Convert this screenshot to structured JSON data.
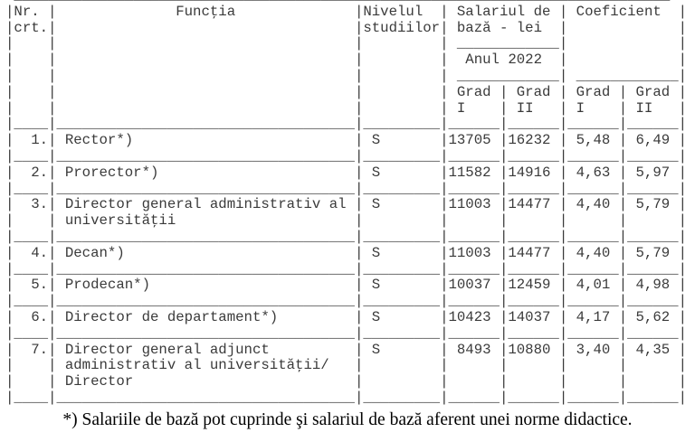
{
  "header": {
    "nr": [
      "Nr.",
      "crt."
    ],
    "functia": "Funcţia",
    "nivel": [
      "Nivelul",
      "studiilor"
    ],
    "salariu": [
      "Salariul de",
      "bază - lei"
    ],
    "anul": "Anul 2022",
    "coeficient": "Coeficient",
    "grad": [
      "Grad",
      "Grad",
      "Grad",
      "Grad"
    ],
    "grad_sub": [
      "I",
      "II",
      "I",
      "II"
    ]
  },
  "rows": [
    {
      "nr": "1.",
      "functia": [
        "Rector*)"
      ],
      "nivel": "S",
      "sal1": "13705",
      "sal2": "16232",
      "coef1": "5,48",
      "coef2": "6,49"
    },
    {
      "nr": "2.",
      "functia": [
        "Prorector*)"
      ],
      "nivel": "S",
      "sal1": "11582",
      "sal2": "14916",
      "coef1": "4,63",
      "coef2": "5,97"
    },
    {
      "nr": "3.",
      "functia": [
        "Director general administrativ al",
        "universităţii"
      ],
      "nivel": "S",
      "sal1": "11003",
      "sal2": "14477",
      "coef1": "4,40",
      "coef2": "5,79"
    },
    {
      "nr": "4.",
      "functia": [
        "Decan*)"
      ],
      "nivel": "S",
      "sal1": "11003",
      "sal2": "14477",
      "coef1": "4,40",
      "coef2": "5,79"
    },
    {
      "nr": "5.",
      "functia": [
        "Prodecan*)"
      ],
      "nivel": "S",
      "sal1": "10037",
      "sal2": "12459",
      "coef1": "4,01",
      "coef2": "4,98"
    },
    {
      "nr": "6.",
      "functia": [
        "Director de departament*)"
      ],
      "nivel": "S",
      "sal1": "10423",
      "sal2": "14037",
      "coef1": "4,17",
      "coef2": "5,62"
    },
    {
      "nr": "7.",
      "functia": [
        "Director general adjunct",
        "administrativ al universităţii/",
        "Director"
      ],
      "nivel": "S",
      "sal1": "8493",
      "sal2": "10880",
      "coef1": "3,40",
      "coef2": "4,35"
    }
  ],
  "footnote": "*) Salariile de bază pot cuprinde şi salariul de bază aferent unei norme didactice."
}
